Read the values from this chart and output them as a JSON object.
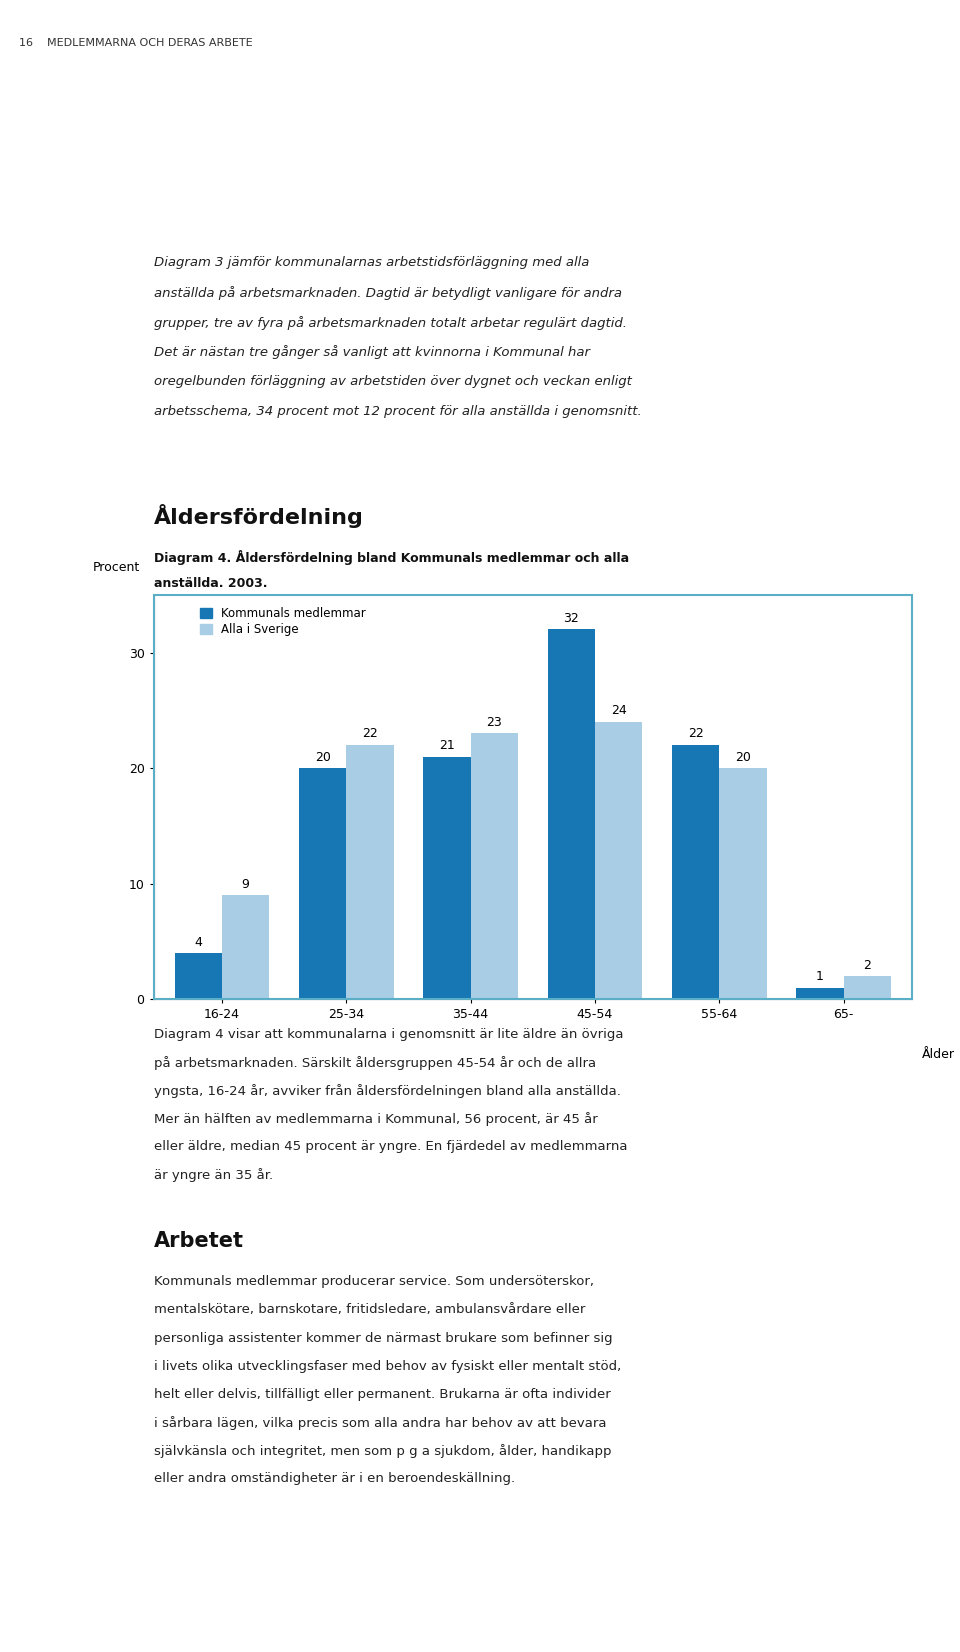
{
  "categories": [
    "16-24",
    "25-34",
    "35-44",
    "45-54",
    "55-64",
    "65-"
  ],
  "kommunal": [
    4,
    20,
    21,
    32,
    22,
    1
  ],
  "sverige": [
    9,
    22,
    23,
    24,
    20,
    2
  ],
  "kommunal_color": "#1777b4",
  "sverige_color": "#aacde6",
  "ylabel": "Procent",
  "xlabel": "Ålder",
  "ylim": [
    0,
    35
  ],
  "yticks": [
    0,
    10,
    20,
    30
  ],
  "legend_kommunal": "Kommunals medlemmar",
  "legend_sverige": "Alla i Sverige",
  "bar_width": 0.38,
  "figure_width": 9.6,
  "figure_height": 16.52,
  "border_color": "#5aafc7",
  "tick_fontsize": 9,
  "ylabel_fontsize": 9,
  "xlabel_fontsize": 9,
  "legend_fontsize": 8.5,
  "value_fontsize": 9,
  "background_color": "#ffffff",
  "header_text": "16    MEDLEMMARNA OCH DERAS ARBETE",
  "title_section": "Åldersfördelning",
  "caption": "Diagram 4. Åldersfördelning bland Kommunals medlemmar och alla\nanställda. 2003.",
  "para1": "Diagram 3 jämför kommunalarnas arbetstidsförläggning med alla\nanställda på arbetsmarknaden. Dagtid är betydligt vanligare för andra\ngrupper, tre av fyra på arbetsmarknaden totalt arbetar regulärt dagtid.\nDet är nästan tre gånger så vanligt att kvinnorna i Kommunal har\noregelbunden förläggning av arbetstiden över dygnet och veckan enligt\narbetsschema, 34 procent mot 12 procent för alla anställda i genomsnitt.",
  "para2": "Diagram 4 visar att kommunalarna i genomsnitt är lite äldre än övriga\npå arbetsmarknaden. Särskilt åldersgruppen 45-54 år och de allra\nyngsta, 16-24 år, avviker från åldersfördelningen bland alla anställda.\nMer än hälften av medlemmarna i Kommunal, 56 procent, är 45 år\neller äldre, median 45 procent är yngre. En fjärdedel av medlemmarna\när yngre än 35 år.",
  "section2": "Arbetet",
  "para3": "Kommunals medlemmar producerar service. Som undersöterskor,\nmentalskötare, barnskotare, fritidsledare, ambulansvårdare eller\npersonliga assistenter kommer de närmast brukare som befinner sig\ni livets olika utvecklingsfaser med behov av fysiskt eller mentalt stöd,\nhelt eller delvis, tillfälligt eller permanent. Brukarna är ofta individer\ni sårbara lägen, vilka precis som alla andra har behov av att bevara\nsjälvkänsla och integritet, men som p g a sjukdom, ålder, handikapp\neller andra omständigheter är i en beroendeskällning."
}
